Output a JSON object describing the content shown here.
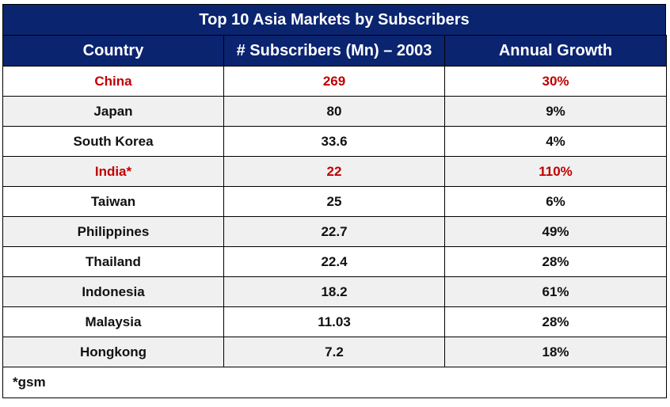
{
  "title": "Top 10 Asia Markets by Subscribers",
  "headers": [
    "Country",
    "# Subscribers (Mn) – 2003",
    "Annual Growth"
  ],
  "chart_data": {
    "type": "table",
    "title": "Top 10 Asia Markets by Subscribers",
    "columns": [
      "Country",
      "# Subscribers (Mn) – 2003",
      "Annual Growth"
    ],
    "rows": [
      {
        "country": "China",
        "subscribers": "269",
        "growth": "30%",
        "highlight": true
      },
      {
        "country": "Japan",
        "subscribers": "80",
        "growth": "9%",
        "highlight": false
      },
      {
        "country": "South Korea",
        "subscribers": "33.6",
        "growth": "4%",
        "highlight": false
      },
      {
        "country": "India*",
        "subscribers": "22",
        "growth": "110%",
        "highlight": true
      },
      {
        "country": "Taiwan",
        "subscribers": "25",
        "growth": "6%",
        "highlight": false
      },
      {
        "country": "Philippines",
        "subscribers": "22.7",
        "growth": "49%",
        "highlight": false
      },
      {
        "country": "Thailand",
        "subscribers": "22.4",
        "growth": "28%",
        "highlight": false
      },
      {
        "country": "Indonesia",
        "subscribers": "18.2",
        "growth": "61%",
        "highlight": false
      },
      {
        "country": "Malaysia",
        "subscribers": "11.03",
        "growth": "28%",
        "highlight": false
      },
      {
        "country": "Hongkong",
        "subscribers": "7.2",
        "growth": "18%",
        "highlight": false
      }
    ]
  },
  "footnote": "*gsm",
  "colors": {
    "header_bg": "#0a2470",
    "highlight_text": "#c00000",
    "stripe_bg": "#f0f0f0"
  }
}
